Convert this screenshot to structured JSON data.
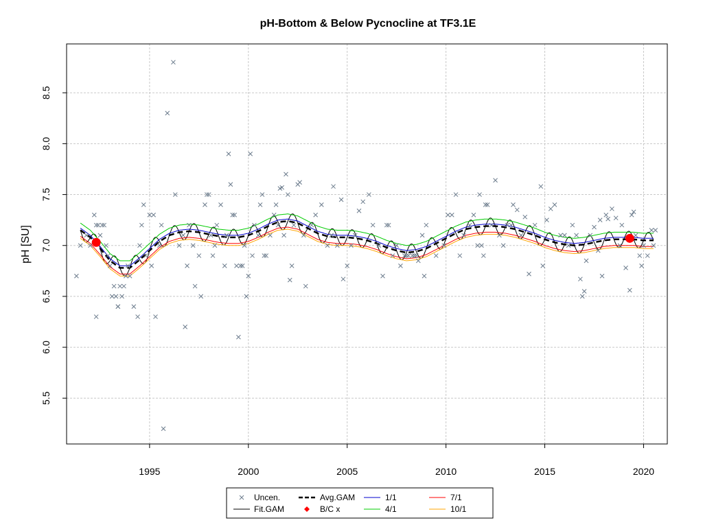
{
  "chart_data": {
    "type": "scatter",
    "title": "pH-Bottom & Below Pycnocline at TF3.1E",
    "xlabel": "",
    "ylabel": "pH [SU]",
    "xlim": [
      1990.8,
      2021.2
    ],
    "ylim": [
      5.05,
      8.98
    ],
    "xticks": [
      1995,
      2000,
      2005,
      2010,
      2015,
      2020
    ],
    "yticks": [
      5.5,
      6.0,
      6.5,
      7.0,
      7.5,
      8.0,
      8.5
    ],
    "grid": true,
    "legend_position": "bottom",
    "legend": [
      {
        "label": "Uncen.",
        "kind": "x",
        "color": "#6b7b8c"
      },
      {
        "label": "Fit.GAM",
        "kind": "line",
        "color": "#000000"
      },
      {
        "label": "Avg.GAM",
        "kind": "dash",
        "color": "#000000"
      },
      {
        "label": "B/C x",
        "kind": "diamond",
        "color": "#ff0000"
      },
      {
        "label": "1/1",
        "kind": "line",
        "color": "#0000cd"
      },
      {
        "label": "4/1",
        "kind": "line",
        "color": "#00cc00"
      },
      {
        "label": "7/1",
        "kind": "line",
        "color": "#ff0000"
      },
      {
        "label": "10/1",
        "kind": "line",
        "color": "#ffa500"
      }
    ],
    "colors": {
      "uncen": "#6b7b8c",
      "fit": "#000000",
      "avg": "#000000",
      "bc": "#ff0000",
      "jan": "#0000cd",
      "apr": "#00cc00",
      "jul": "#ff0000",
      "oct": "#ffa500",
      "grid": "#c8c8c8"
    },
    "uncen_points": [
      [
        1991.3,
        6.7
      ],
      [
        1991.5,
        7.0
      ],
      [
        1991.8,
        7.1
      ],
      [
        1992.0,
        7.0
      ],
      [
        1992.2,
        7.3
      ],
      [
        1992.3,
        7.2
      ],
      [
        1992.4,
        7.2
      ],
      [
        1992.5,
        7.1
      ],
      [
        1992.6,
        7.2
      ],
      [
        1992.7,
        7.2
      ],
      [
        1992.8,
        7.0
      ],
      [
        1992.9,
        6.9
      ],
      [
        1993.0,
        6.8
      ],
      [
        1993.1,
        6.5
      ],
      [
        1993.2,
        6.6
      ],
      [
        1993.3,
        6.5
      ],
      [
        1993.5,
        6.6
      ],
      [
        1993.6,
        6.5
      ],
      [
        1993.7,
        6.6
      ],
      [
        1993.8,
        6.7
      ],
      [
        1993.9,
        6.8
      ],
      [
        1994.0,
        6.7
      ],
      [
        1992.3,
        6.3
      ],
      [
        1993.4,
        6.4
      ],
      [
        1993.4,
        6.4
      ],
      [
        1994.2,
        6.4
      ],
      [
        1994.4,
        6.3
      ],
      [
        1994.5,
        7.0
      ],
      [
        1994.6,
        7.2
      ],
      [
        1994.7,
        7.4
      ],
      [
        1994.8,
        6.9
      ],
      [
        1995.0,
        7.3
      ],
      [
        1995.1,
        6.8
      ],
      [
        1995.2,
        7.3
      ],
      [
        1995.3,
        6.3
      ],
      [
        1995.5,
        7.0
      ],
      [
        1995.6,
        7.2
      ],
      [
        1995.7,
        5.2
      ],
      [
        1995.9,
        8.3
      ],
      [
        1996.2,
        8.8
      ],
      [
        1996.3,
        7.5
      ],
      [
        1996.5,
        7.0
      ],
      [
        1996.7,
        7.1
      ],
      [
        1996.8,
        6.2
      ],
      [
        1996.9,
        6.8
      ],
      [
        1997.0,
        7.2
      ],
      [
        1997.2,
        7.0
      ],
      [
        1997.3,
        6.6
      ],
      [
        1997.5,
        6.9
      ],
      [
        1997.6,
        6.5
      ],
      [
        1997.8,
        7.4
      ],
      [
        1997.9,
        7.5
      ],
      [
        1998.0,
        7.5
      ],
      [
        1998.1,
        7.1
      ],
      [
        1998.2,
        6.9
      ],
      [
        1998.3,
        7.0
      ],
      [
        1998.4,
        7.2
      ],
      [
        1998.6,
        7.4
      ],
      [
        1998.8,
        6.8
      ],
      [
        1998.9,
        7.1
      ],
      [
        1999.0,
        7.9
      ],
      [
        1999.1,
        7.6
      ],
      [
        1999.2,
        7.3
      ],
      [
        1999.3,
        7.3
      ],
      [
        1999.4,
        6.8
      ],
      [
        1999.5,
        6.1
      ],
      [
        1999.6,
        6.8
      ],
      [
        1999.7,
        6.8
      ],
      [
        1999.8,
        7.0
      ],
      [
        1999.9,
        6.5
      ],
      [
        2000.0,
        6.7
      ],
      [
        2000.1,
        7.9
      ],
      [
        2000.2,
        6.9
      ],
      [
        2000.3,
        7.2
      ],
      [
        2000.5,
        7.1
      ],
      [
        2000.6,
        7.4
      ],
      [
        2000.7,
        7.5
      ],
      [
        2000.8,
        6.9
      ],
      [
        2000.9,
        6.9
      ],
      [
        2001.1,
        7.1
      ],
      [
        2001.3,
        7.3
      ],
      [
        2001.4,
        7.4
      ],
      [
        2001.5,
        7.2
      ],
      [
        2001.6,
        7.56
      ],
      [
        2001.7,
        7.57
      ],
      [
        2001.8,
        7.1
      ],
      [
        2001.9,
        7.7
      ],
      [
        2002.0,
        7.5
      ],
      [
        2002.1,
        6.66
      ],
      [
        2002.2,
        6.8
      ],
      [
        2002.3,
        7.2
      ],
      [
        2002.5,
        7.6
      ],
      [
        2002.6,
        7.62
      ],
      [
        2002.8,
        7.1
      ],
      [
        2002.9,
        6.6
      ],
      [
        2003.2,
        7.2
      ],
      [
        2003.4,
        7.3
      ],
      [
        2003.7,
        7.4
      ],
      [
        2004.0,
        7.0
      ],
      [
        2004.2,
        7.1
      ],
      [
        2004.3,
        7.58
      ],
      [
        2004.5,
        7.0
      ],
      [
        2004.7,
        7.45
      ],
      [
        2004.8,
        6.67
      ],
      [
        2005.0,
        6.8
      ],
      [
        2005.2,
        7.0
      ],
      [
        2005.4,
        7.1
      ],
      [
        2005.6,
        7.34
      ],
      [
        2005.8,
        7.43
      ],
      [
        2006.1,
        7.5
      ],
      [
        2006.3,
        7.2
      ],
      [
        2006.6,
        7.0
      ],
      [
        2006.8,
        6.7
      ],
      [
        2007.0,
        7.2
      ],
      [
        2007.1,
        7.2
      ],
      [
        2007.3,
        6.9
      ],
      [
        2007.5,
        7.0
      ],
      [
        2007.7,
        6.8
      ],
      [
        2007.9,
        6.9
      ],
      [
        2008.0,
        6.9
      ],
      [
        2008.1,
        6.9
      ],
      [
        2008.3,
        6.9
      ],
      [
        2008.4,
        6.9
      ],
      [
        2008.5,
        6.9
      ],
      [
        2008.6,
        6.85
      ],
      [
        2008.8,
        7.1
      ],
      [
        2008.9,
        6.7
      ],
      [
        2009.0,
        7.2
      ],
      [
        2009.5,
        6.9
      ],
      [
        2009.9,
        7.0
      ],
      [
        2010.1,
        7.3
      ],
      [
        2010.3,
        7.3
      ],
      [
        2010.5,
        7.5
      ],
      [
        2010.7,
        6.9
      ],
      [
        2010.9,
        7.1
      ],
      [
        2011.2,
        7.2
      ],
      [
        2011.4,
        7.3
      ],
      [
        2011.6,
        7.0
      ],
      [
        2011.7,
        7.5
      ],
      [
        2011.8,
        7.0
      ],
      [
        2011.9,
        6.9
      ],
      [
        2012.0,
        7.4
      ],
      [
        2012.1,
        7.4
      ],
      [
        2012.3,
        7.2
      ],
      [
        2012.5,
        7.64
      ],
      [
        2012.7,
        7.1
      ],
      [
        2012.9,
        7.0
      ],
      [
        2013.1,
        7.2
      ],
      [
        2013.3,
        7.2
      ],
      [
        2013.4,
        7.4
      ],
      [
        2013.6,
        7.35
      ],
      [
        2013.8,
        7.1
      ],
      [
        2014.0,
        7.28
      ],
      [
        2014.2,
        6.72
      ],
      [
        2014.5,
        7.2
      ],
      [
        2014.8,
        7.58
      ],
      [
        2014.9,
        6.8
      ],
      [
        2015.1,
        7.25
      ],
      [
        2015.3,
        7.36
      ],
      [
        2015.5,
        7.4
      ],
      [
        2015.8,
        7.1
      ],
      [
        2016.0,
        7.1
      ],
      [
        2016.2,
        7.0
      ],
      [
        2016.4,
        7.2
      ],
      [
        2016.6,
        7.1
      ],
      [
        2016.8,
        6.67
      ],
      [
        2016.9,
        6.5
      ],
      [
        2017.0,
        6.55
      ],
      [
        2017.1,
        6.85
      ],
      [
        2017.3,
        7.1
      ],
      [
        2017.5,
        7.18
      ],
      [
        2017.7,
        6.95
      ],
      [
        2017.8,
        7.25
      ],
      [
        2017.9,
        6.7
      ],
      [
        2018.1,
        7.3
      ],
      [
        2018.2,
        7.26
      ],
      [
        2018.4,
        7.36
      ],
      [
        2018.6,
        7.27
      ],
      [
        2018.8,
        7.0
      ],
      [
        2018.9,
        7.2
      ],
      [
        2019.1,
        6.78
      ],
      [
        2019.3,
        6.56
      ],
      [
        2019.4,
        7.3
      ],
      [
        2019.5,
        7.33
      ],
      [
        2019.6,
        7.1
      ],
      [
        2019.8,
        6.9
      ],
      [
        2019.9,
        6.8
      ],
      [
        2020.0,
        7.0
      ],
      [
        2020.2,
        6.9
      ],
      [
        2020.4,
        7.15
      ],
      [
        2020.5,
        7.0
      ],
      [
        2020.6,
        7.15
      ]
    ],
    "bc_points": [
      [
        1992.3,
        7.03
      ],
      [
        2019.3,
        7.07
      ]
    ],
    "avg_gam": [
      [
        1991.5,
        7.15
      ],
      [
        1992.0,
        7.08
      ],
      [
        1992.5,
        6.97
      ],
      [
        1993.0,
        6.85
      ],
      [
        1993.5,
        6.78
      ],
      [
        1994.0,
        6.78
      ],
      [
        1994.5,
        6.86
      ],
      [
        1995.0,
        6.95
      ],
      [
        1995.5,
        7.04
      ],
      [
        1996.0,
        7.1
      ],
      [
        1996.5,
        7.13
      ],
      [
        1997.0,
        7.14
      ],
      [
        1997.5,
        7.13
      ],
      [
        1998.0,
        7.11
      ],
      [
        1998.5,
        7.09
      ],
      [
        1999.0,
        7.08
      ],
      [
        1999.5,
        7.08
      ],
      [
        2000.0,
        7.1
      ],
      [
        2000.5,
        7.14
      ],
      [
        2001.0,
        7.19
      ],
      [
        2001.5,
        7.23
      ],
      [
        2002.0,
        7.24
      ],
      [
        2002.5,
        7.22
      ],
      [
        2003.0,
        7.17
      ],
      [
        2003.5,
        7.12
      ],
      [
        2004.0,
        7.09
      ],
      [
        2004.5,
        7.08
      ],
      [
        2005.0,
        7.08
      ],
      [
        2005.5,
        7.07
      ],
      [
        2006.0,
        7.05
      ],
      [
        2006.5,
        7.02
      ],
      [
        2007.0,
        6.98
      ],
      [
        2007.5,
        6.95
      ],
      [
        2008.0,
        6.93
      ],
      [
        2008.5,
        6.94
      ],
      [
        2009.0,
        6.97
      ],
      [
        2009.5,
        7.02
      ],
      [
        2010.0,
        7.07
      ],
      [
        2010.5,
        7.12
      ],
      [
        2011.0,
        7.16
      ],
      [
        2011.5,
        7.18
      ],
      [
        2012.0,
        7.19
      ],
      [
        2012.5,
        7.19
      ],
      [
        2013.0,
        7.18
      ],
      [
        2013.5,
        7.16
      ],
      [
        2014.0,
        7.13
      ],
      [
        2014.5,
        7.1
      ],
      [
        2015.0,
        7.06
      ],
      [
        2015.5,
        7.03
      ],
      [
        2016.0,
        7.01
      ],
      [
        2016.5,
        7.0
      ],
      [
        2017.0,
        7.01
      ],
      [
        2017.5,
        7.03
      ],
      [
        2018.0,
        7.05
      ],
      [
        2018.5,
        7.06
      ],
      [
        2019.0,
        7.06
      ],
      [
        2019.5,
        7.06
      ],
      [
        2020.0,
        7.05
      ],
      [
        2020.5,
        7.05
      ]
    ],
    "seasonal_offsets": {
      "jan": 0.02,
      "apr": 0.07,
      "jul": -0.06,
      "oct": -0.08
    },
    "fit_gam_amplitude": 0.08
  }
}
